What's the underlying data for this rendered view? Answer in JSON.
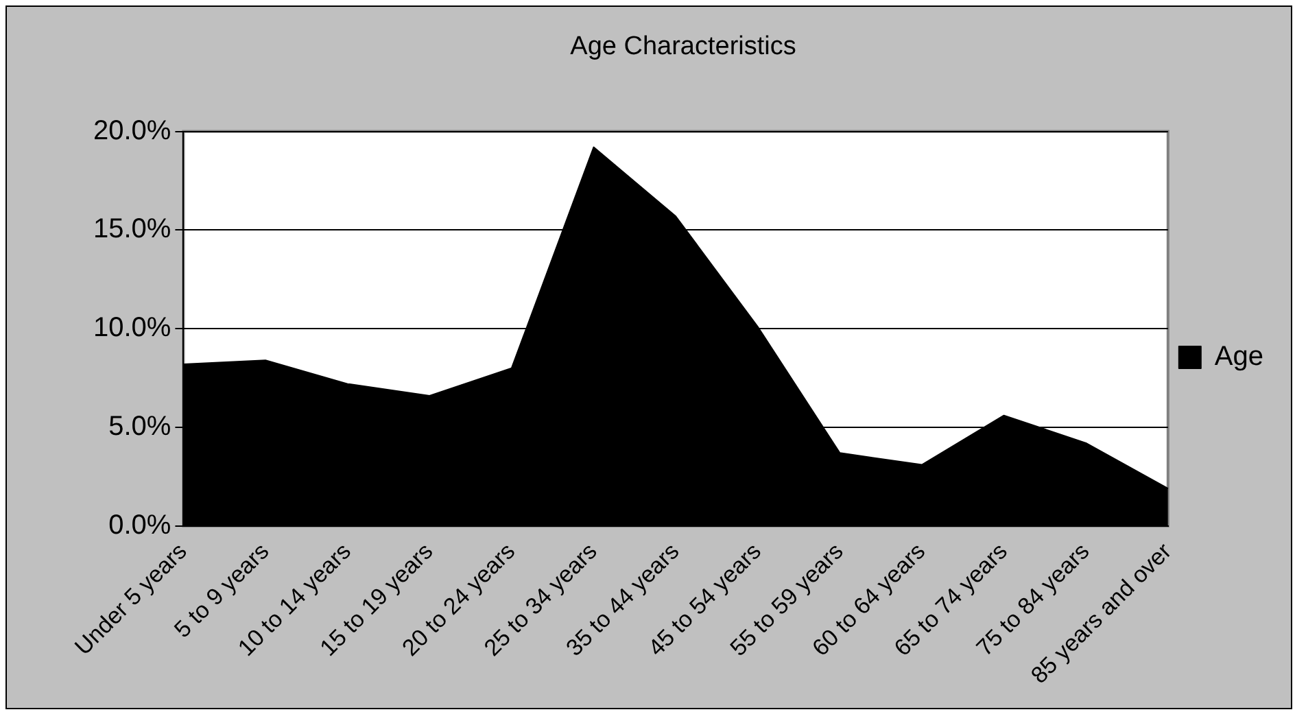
{
  "chart_data": {
    "type": "area",
    "title": "Age Characteristics",
    "categories": [
      "Under 5 years",
      "5 to 9 years",
      "10 to 14 years",
      "15 to 19 years",
      "20 to 24 years",
      "25 to 34 years",
      "35 to 44 years",
      "45 to 54 years",
      "55 to 59 years",
      "60 to 64 years",
      "65 to 74 years",
      "75 to 84 years",
      "85 years and over"
    ],
    "series": [
      {
        "name": "Age",
        "color": "#000000",
        "values": [
          8.2,
          8.4,
          7.2,
          6.6,
          8.0,
          19.2,
          15.7,
          10.1,
          3.7,
          3.1,
          5.6,
          4.2,
          1.9
        ]
      }
    ],
    "ylim": [
      0,
      20
    ],
    "yticks": [
      {
        "value": 0,
        "label": "0.0%"
      },
      {
        "value": 5,
        "label": "5.0%"
      },
      {
        "value": 10,
        "label": "10.0%"
      },
      {
        "value": 15,
        "label": "15.0%"
      },
      {
        "value": 20,
        "label": "20.0%"
      }
    ],
    "grid": "y",
    "legend": "right"
  }
}
